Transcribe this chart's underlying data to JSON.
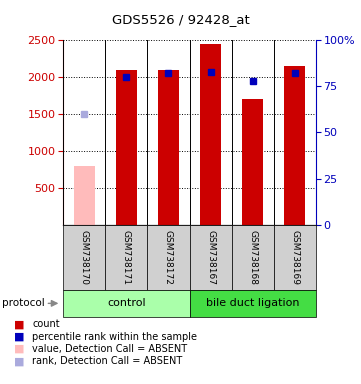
{
  "title": "GDS5526 / 92428_at",
  "samples": [
    "GSM738170",
    "GSM738171",
    "GSM738172",
    "GSM738167",
    "GSM738168",
    "GSM738169"
  ],
  "count_values": [
    null,
    2100,
    2100,
    2450,
    1700,
    2150
  ],
  "count_absent": [
    800,
    null,
    null,
    null,
    null,
    null
  ],
  "percentile_values": [
    null,
    80,
    82,
    83,
    78,
    82
  ],
  "percentile_absent": [
    60,
    null,
    null,
    null,
    null,
    null
  ],
  "ylim_left": [
    0,
    2500
  ],
  "ylim_right": [
    0,
    100
  ],
  "yticks_left": [
    500,
    1000,
    1500,
    2000,
    2500
  ],
  "yticks_right": [
    0,
    25,
    50,
    75,
    100
  ],
  "ytick_labels_right": [
    "0",
    "25",
    "50",
    "75",
    "100%"
  ],
  "bar_color_present": "#cc0000",
  "bar_color_absent": "#ffbbbb",
  "dot_color_present": "#0000bb",
  "dot_color_absent": "#aaaadd",
  "control_color": "#aaffaa",
  "bdl_color": "#44dd44",
  "bar_width": 0.5,
  "legend_items": [
    {
      "label": "count",
      "color": "#cc0000"
    },
    {
      "label": "percentile rank within the sample",
      "color": "#0000bb"
    },
    {
      "label": "value, Detection Call = ABSENT",
      "color": "#ffbbbb"
    },
    {
      "label": "rank, Detection Call = ABSENT",
      "color": "#aaaadd"
    }
  ]
}
